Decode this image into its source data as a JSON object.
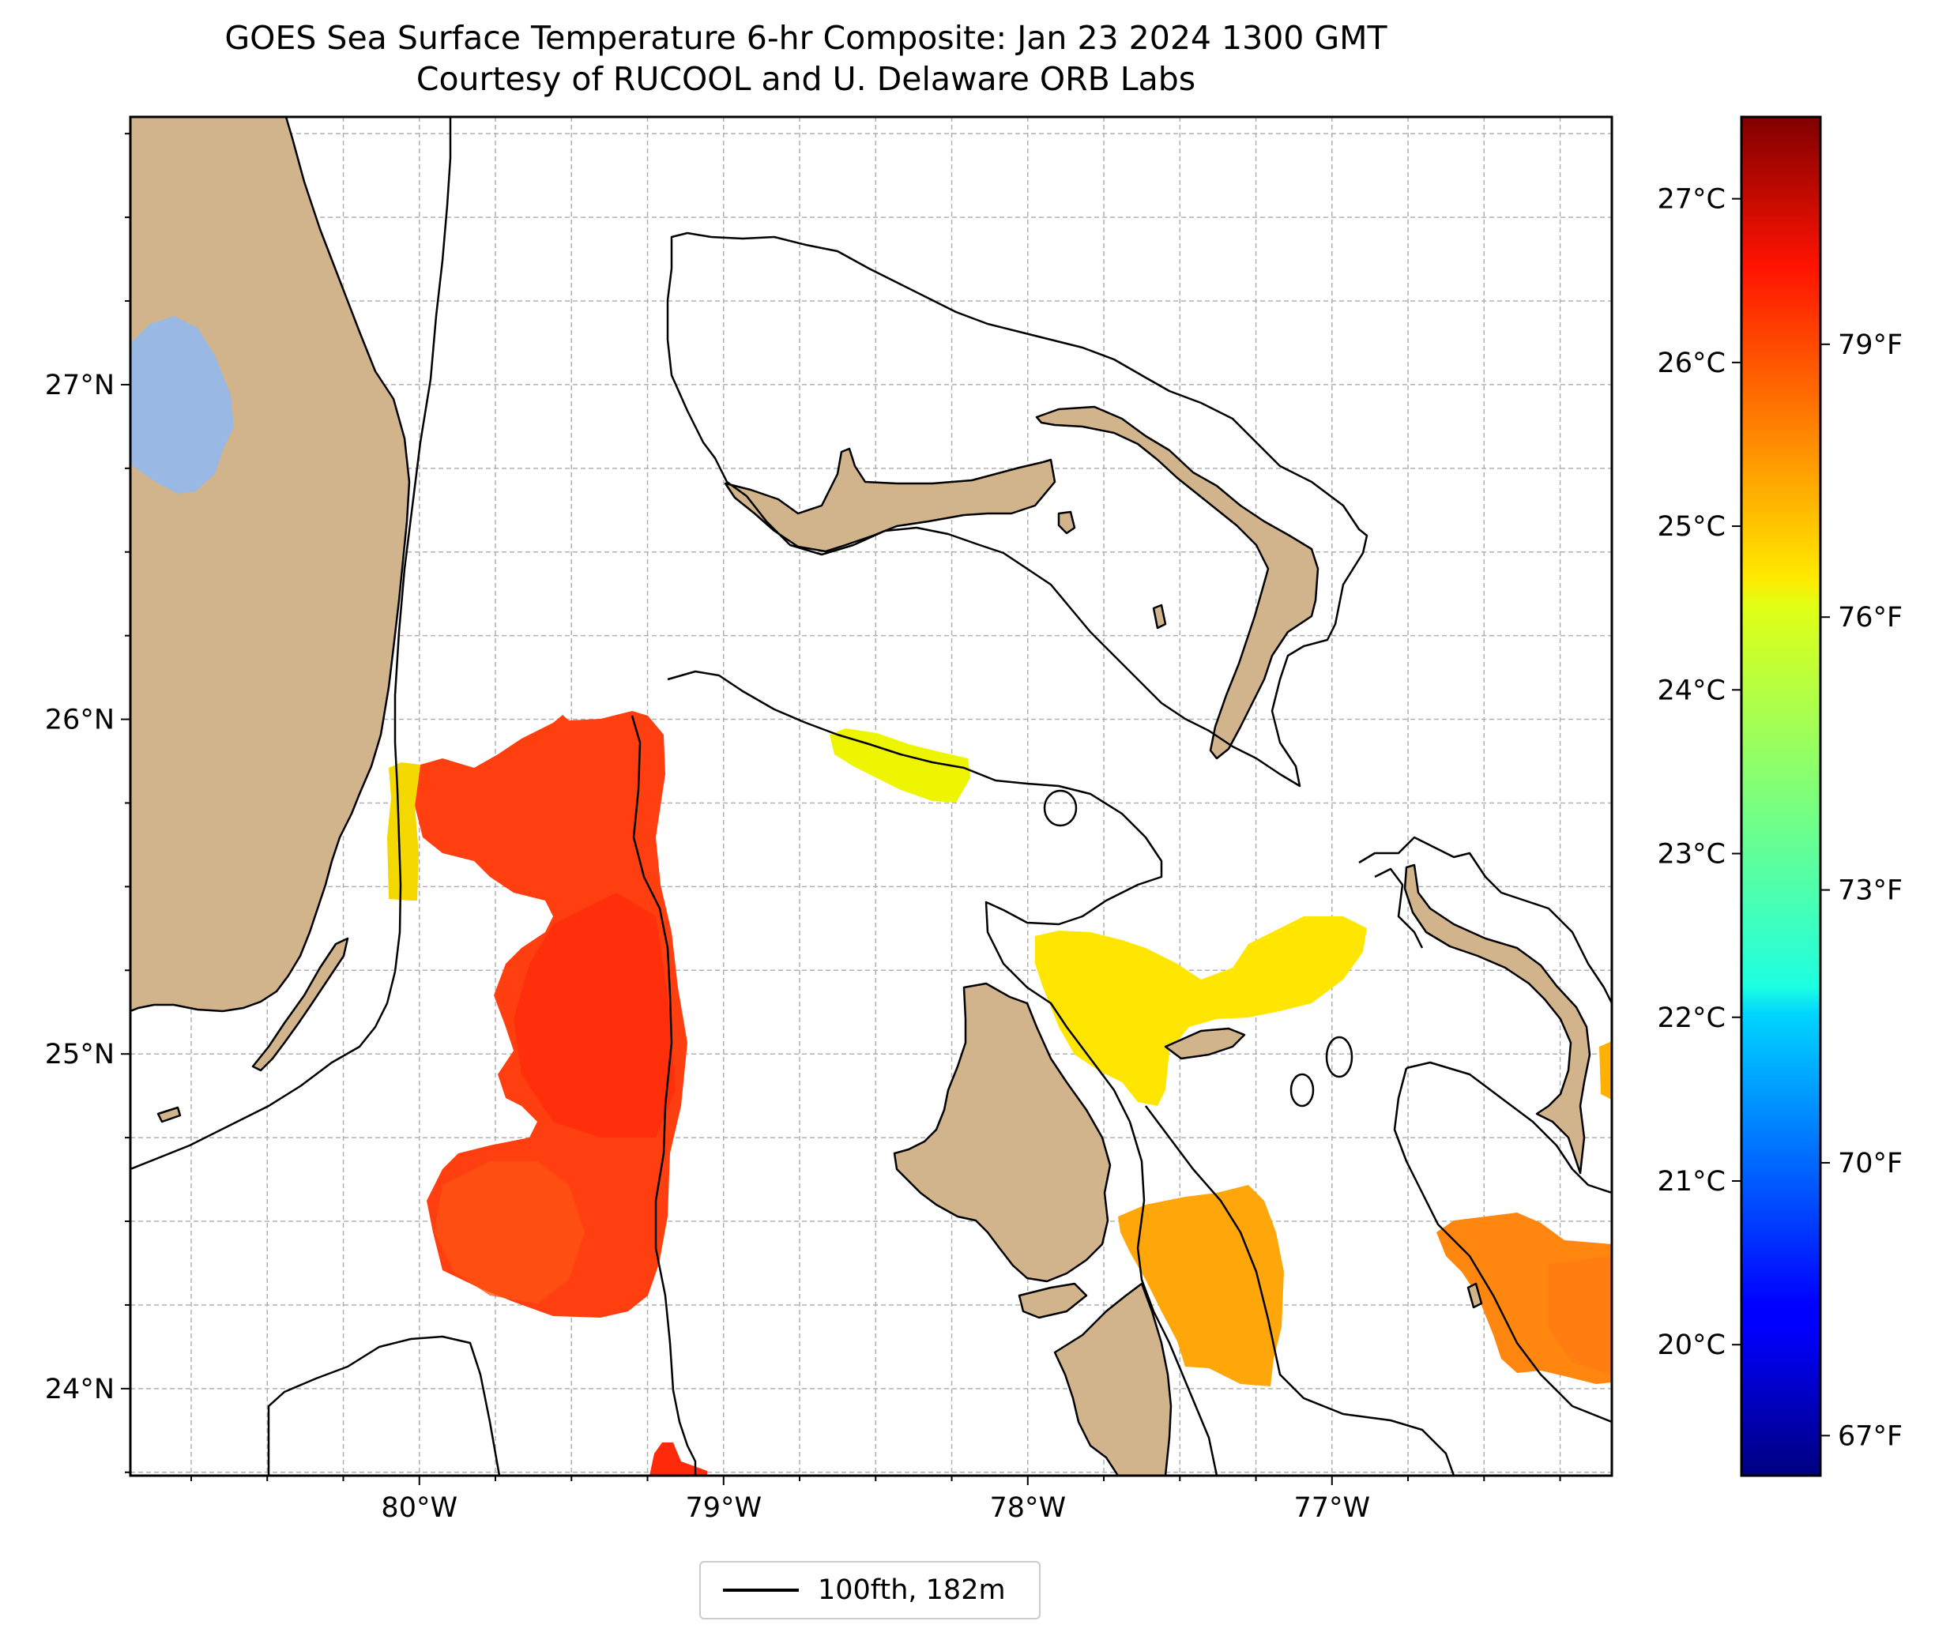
{
  "title": {
    "line1": "GOES Sea Surface Temperature 6-hr Composite: Jan 23 2024 1300 GMT",
    "line2": "Courtesy of RUCOOL and U. Delaware ORB Labs"
  },
  "map": {
    "lon_range": [
      -80.95,
      -76.08
    ],
    "lat_range": [
      23.74,
      27.8
    ],
    "lon_ticks": [
      {
        "v": -80,
        "label": "80°W"
      },
      {
        "v": -79,
        "label": "79°W"
      },
      {
        "v": -78,
        "label": "78°W"
      },
      {
        "v": -77,
        "label": "77°W"
      }
    ],
    "lat_ticks": [
      {
        "v": 24,
        "label": "24°N"
      },
      {
        "v": 25,
        "label": "25°N"
      },
      {
        "v": 26,
        "label": "26°N"
      },
      {
        "v": 27,
        "label": "27°N"
      }
    ],
    "grid": true,
    "colors": {
      "land": "#d2b48c",
      "lake": "#99b9e4",
      "grid": "#b0b0b0"
    }
  },
  "sst_regions": [
    {
      "name": "florida-straits-warm-patch",
      "approx_temp_f": 79.5,
      "color": "#ff3f10"
    },
    {
      "name": "florida-coast-edge",
      "approx_temp_f": 76.5,
      "color": "#f3d900"
    },
    {
      "name": "northwest-providence-channel",
      "approx_temp_f": 76.0,
      "color": "#eef500"
    },
    {
      "name": "tongue-of-the-ocean-north",
      "approx_temp_f": 76.3,
      "color": "#ffe600"
    },
    {
      "name": "exuma-sound-west",
      "approx_temp_f": 77.7,
      "color": "#ffa60a"
    },
    {
      "name": "exuma-sound-east",
      "approx_temp_f": 78.2,
      "color": "#ff8710"
    }
  ],
  "colorbar": {
    "celsius_ticks": [
      {
        "v": 20,
        "label": "20°C"
      },
      {
        "v": 21,
        "label": "21°C"
      },
      {
        "v": 22,
        "label": "22°C"
      },
      {
        "v": 23,
        "label": "23°C"
      },
      {
        "v": 24,
        "label": "24°C"
      },
      {
        "v": 25,
        "label": "25°C"
      },
      {
        "v": 26,
        "label": "26°C"
      },
      {
        "v": 27,
        "label": "27°C"
      }
    ],
    "fahrenheit_ticks": [
      {
        "v": 67,
        "label": "67°F"
      },
      {
        "v": 70,
        "label": "70°F"
      },
      {
        "v": 73,
        "label": "73°F"
      },
      {
        "v": 76,
        "label": "76°F"
      },
      {
        "v": 79,
        "label": "79°F"
      }
    ],
    "range_c": [
      19.2,
      27.5
    ],
    "colormap": "jet"
  },
  "legend": {
    "label": "100fth, 182m",
    "line_color": "#000000"
  }
}
